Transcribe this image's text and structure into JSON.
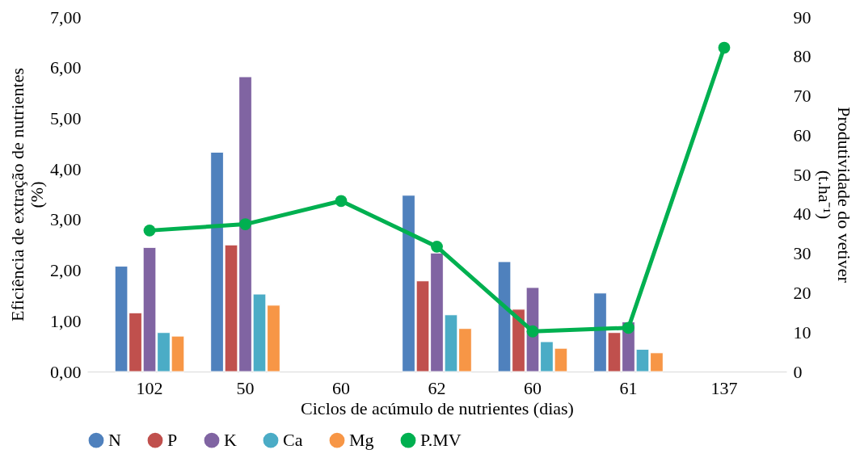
{
  "chart_data": {
    "type": "bar",
    "xlabel": "Ciclos de acúmulo de nutrientes (dias)",
    "ylabel": "Eficiência de extração de nutrientes\n(%)",
    "y2label": "Produtividade do vetiver\n(t.ha⁻¹)",
    "categories": [
      "102",
      "50",
      "60",
      "62",
      "60",
      "61",
      "137"
    ],
    "series": [
      {
        "name": "N",
        "color": "#4f81bd",
        "values": [
          2.08,
          4.33,
          null,
          3.48,
          2.17,
          1.55,
          null
        ]
      },
      {
        "name": "P",
        "color": "#c0504d",
        "values": [
          1.16,
          2.5,
          null,
          1.79,
          1.23,
          0.77,
          null
        ]
      },
      {
        "name": "K",
        "color": "#8064a2",
        "values": [
          2.45,
          5.82,
          null,
          2.34,
          1.66,
          0.98,
          null
        ]
      },
      {
        "name": "Ca",
        "color": "#4bacc6",
        "values": [
          0.77,
          1.53,
          null,
          1.12,
          0.59,
          0.44,
          null
        ]
      },
      {
        "name": "Mg",
        "color": "#f79646",
        "values": [
          0.7,
          1.31,
          null,
          0.85,
          0.46,
          0.37,
          null
        ]
      },
      {
        "name": "P.MV",
        "type": "line",
        "axis": "y2",
        "color": "#00b050",
        "marker": "circle",
        "values": [
          35.8,
          37.4,
          43.3,
          31.7,
          10.2,
          11.1,
          82.2
        ]
      }
    ],
    "ylim": [
      0,
      7
    ],
    "yticks": [
      {
        "value": 0,
        "label": "0,00"
      },
      {
        "value": 1,
        "label": "1,00"
      },
      {
        "value": 2,
        "label": "2,00"
      },
      {
        "value": 3,
        "label": "3,00"
      },
      {
        "value": 4,
        "label": "4,00"
      },
      {
        "value": 5,
        "label": "5,00"
      },
      {
        "value": 6,
        "label": "6,00"
      },
      {
        "value": 7,
        "label": "7,00"
      }
    ],
    "y2lim": [
      0,
      90
    ],
    "y2ticks": [
      0,
      10,
      20,
      30,
      40,
      50,
      60,
      70,
      80,
      90
    ],
    "grid": false,
    "legend": "bottom"
  }
}
